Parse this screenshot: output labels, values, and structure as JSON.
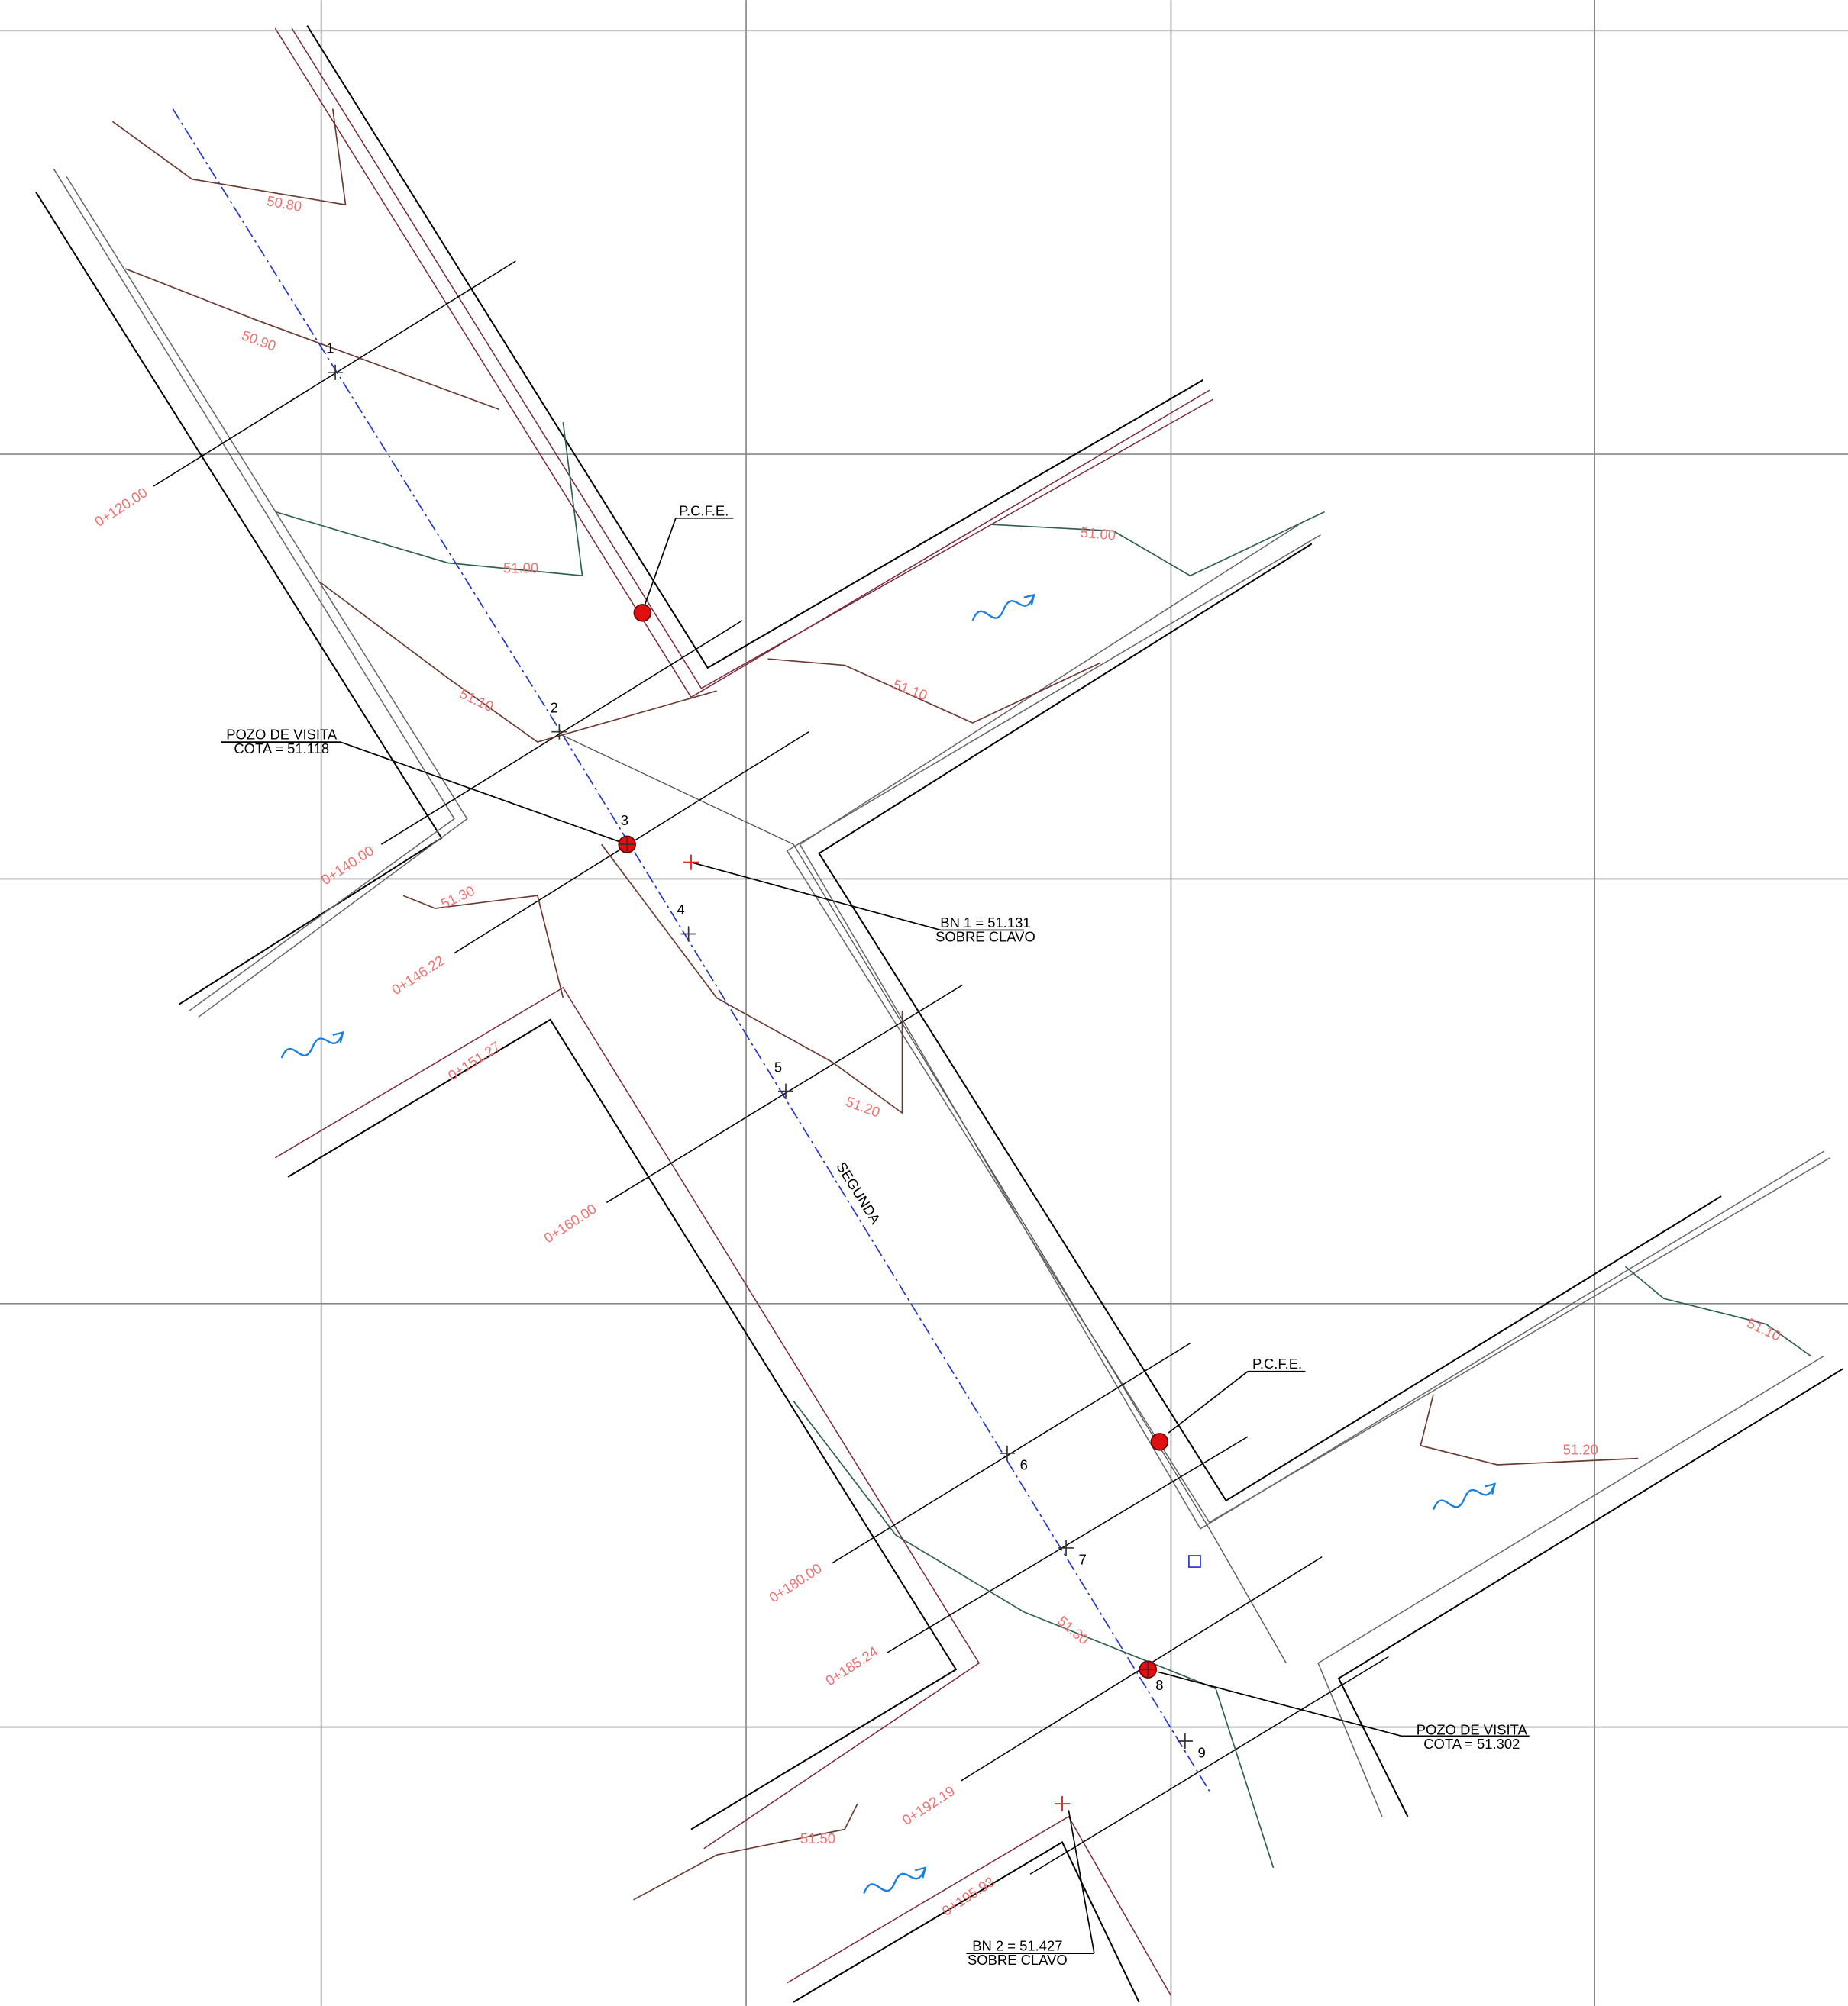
{
  "street": "SEGUNDA",
  "points": [
    "1",
    "2",
    "3",
    "4",
    "5",
    "6",
    "7",
    "8",
    "9"
  ],
  "stations": [
    "0+120.00",
    "0+140.00",
    "0+146.22",
    "0+151.27",
    "0+160.00",
    "0+180.00",
    "0+185.24",
    "0+192.19",
    "0+195.93"
  ],
  "contours": [
    "50.80",
    "50.90",
    "51.00",
    "51.00",
    "51.10",
    "51.10",
    "51.30",
    "51.20",
    "51.10",
    "51.20",
    "51.30",
    "51.50"
  ],
  "annotations": [
    {
      "lines": [
        "P.C.F.E."
      ]
    },
    {
      "lines": [
        "POZO DE VISITA",
        "COTA = 51.118"
      ]
    },
    {
      "lines": [
        "BN 1 = 51.131",
        "SOBRE CLAVO"
      ]
    },
    {
      "lines": [
        "P.C.F.E."
      ]
    },
    {
      "lines": [
        "POZO DE VISITA",
        "COTA = 51.302"
      ]
    },
    {
      "lines": [
        "BN 2 = 51.427",
        "SOBRE CLAVO"
      ]
    }
  ]
}
